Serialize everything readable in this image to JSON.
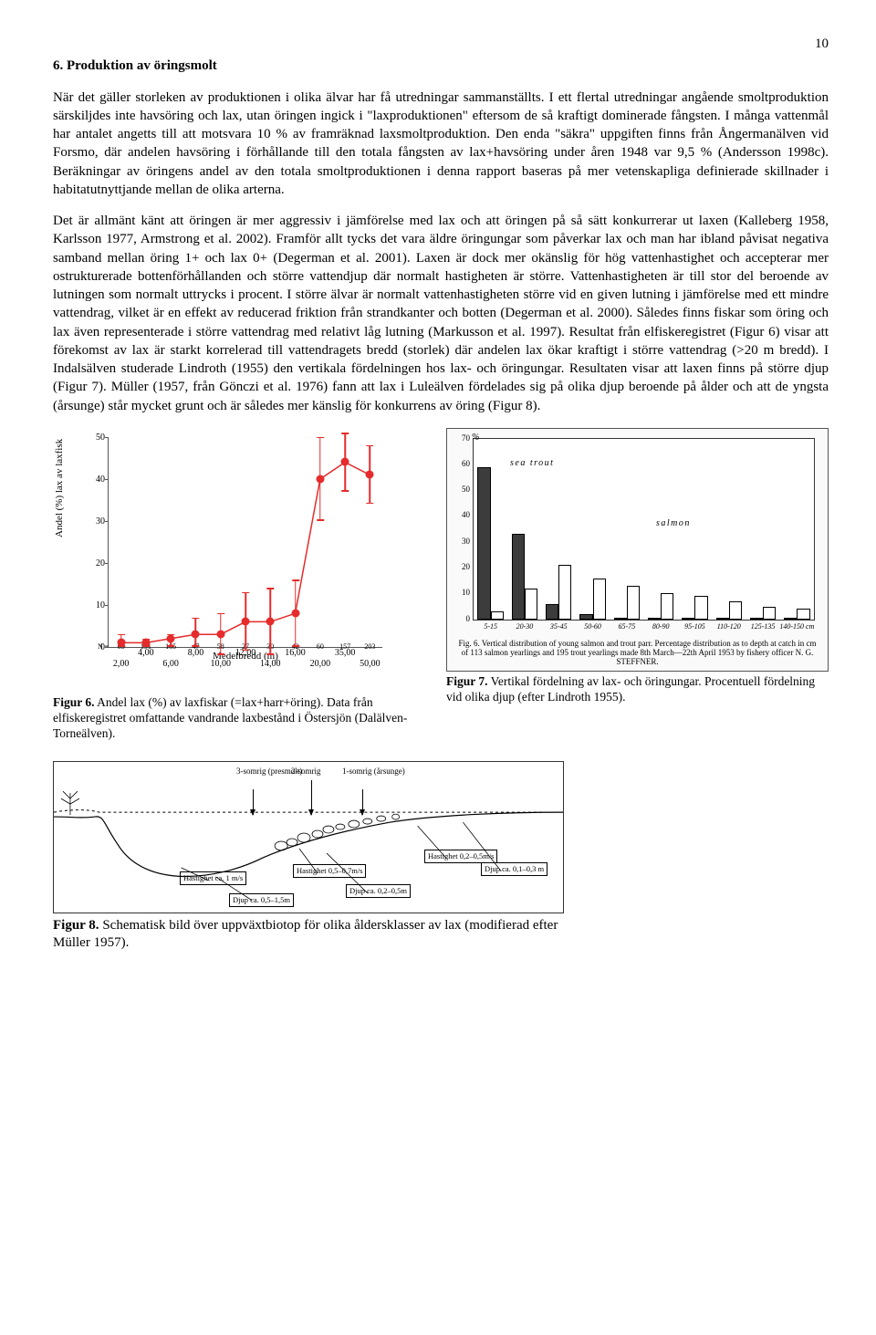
{
  "page_number": "10",
  "section_heading": "6. Produktion av öringsmolt",
  "para1": "När det gäller storleken av produktionen i olika älvar har få utredningar sammanställts. I ett flertal utredningar angående smoltproduktion särskiljdes inte havsöring och lax, utan öringen ingick i \"laxproduktionen\" eftersom de så kraftigt dominerade fångsten. I många vattenmål har antalet angetts till att motsvara 10 % av framräknad laxsmoltproduktion. Den enda \"säkra\" uppgiften finns från Ångermanälven vid Forsmo, där andelen havsöring i förhållande till den totala fångsten av lax+havsöring under åren 1948 var 9,5 % (Andersson 1998c). Beräkningar av öringens andel av den totala smoltproduktionen i denna rapport baseras på mer vetenskapliga definierade skillnader i habitatutnyttjande mellan de olika arterna.",
  "para2": "Det är allmänt känt att öringen är mer aggressiv i jämförelse med lax och att öringen på så sätt konkurrerar ut laxen (Kalleberg 1958, Karlsson 1977, Armstrong et al. 2002). Framför allt tycks det vara äldre öringungar som påverkar lax och man har ibland påvisat negativa samband mellan öring 1+ och lax 0+ (Degerman et al. 2001). Laxen är dock mer okänslig för hög vattenhastighet och accepterar mer ostrukturerade bottenförhållanden och större vattendjup där normalt hastigheten är större. Vattenhastigheten är till stor del beroende av lutningen som normalt uttrycks i procent. I större älvar är normalt vattenhastigheten större vid en given lutning i jämförelse med ett mindre vattendrag, vilket är en effekt av reducerad friktion från strandkanter och botten (Degerman et al. 2000). Således finns fiskar som öring och lax även representerade i större vattendrag med relativt låg lutning (Markusson et al. 1997). Resultat från elfiskeregistret (Figur 6) visar att förekomst av lax är starkt korrelerad till vattendragets bredd (storlek) där andelen lax ökar kraftigt i större vattendrag (>20 m bredd). I Indalsälven studerade Lindroth (1955) den vertikala fördelningen hos lax- och öringungar. Resultaten visar att laxen finns på större djup (Figur 7). Müller (1957, från Gönczi et al. 1976) fann att lax i Luleälven fördelades sig på olika djup beroende på ålder och att de yngsta (årsunge) står mycket grunt och är således mer känslig för konkurrens av öring (Figur 8).",
  "fig6_caption_bold": "Figur 6.",
  "fig6_caption": " Andel lax (%) av laxfiskar (=lax+harr+öring). Data från elfiskeregistret omfattande vandrande laxbestånd i Östersjön (Dalälven-Torneälven).",
  "fig7_caption_bold": "Figur 7.",
  "fig7_caption": " Vertikal fördelning av lax- och öringungar. Procentuell fördelning vid olika djup (efter Lindroth 1955).",
  "fig8_caption_bold": "Figur 8.",
  "fig8_caption": " Schematisk bild över uppväxtbiotop för olika åldersklasser av lax (modifierad efter Müller 1957).",
  "chart6": {
    "ylabel": "Andel (%) lax av laxfisk",
    "xlabel": "Medelbredd (m)",
    "ymin": 0,
    "ymax": 50,
    "ystep": 10,
    "xmajor": [
      "2,00",
      "6,00",
      "10,00",
      "14,00",
      "20,00",
      "50,00"
    ],
    "xminor": [
      "4,00",
      "8,00",
      "12,00",
      "16,00",
      "35,00"
    ],
    "n": [
      "63",
      "191",
      "105",
      "47",
      "58",
      "27",
      "30",
      "42",
      "60",
      "157",
      "203"
    ],
    "points": [
      {
        "y": 1,
        "lo": 0,
        "hi": 3
      },
      {
        "y": 1,
        "lo": 0,
        "hi": 2
      },
      {
        "y": 2,
        "lo": 0,
        "hi": 3
      },
      {
        "y": 3,
        "lo": 0,
        "hi": 7
      },
      {
        "y": 3,
        "lo": -2,
        "hi": 8
      },
      {
        "y": 6,
        "lo": -1,
        "hi": 13
      },
      {
        "y": 6,
        "lo": -2,
        "hi": 14
      },
      {
        "y": 8,
        "lo": 0,
        "hi": 16
      },
      {
        "y": 40,
        "lo": 30,
        "hi": 50
      },
      {
        "y": 44,
        "lo": 37,
        "hi": 51
      },
      {
        "y": 41,
        "lo": 34,
        "hi": 48
      }
    ],
    "color": "#e52b2b"
  },
  "fig7": {
    "ylabel_symbol": "%",
    "ymax": 70,
    "ystep": 10,
    "sea_trout_label": "sea trout",
    "salmon_label": "salmon",
    "xcats": [
      "5-15",
      "20-30",
      "35-45",
      "50-60",
      "65-75",
      "80-90",
      "95-105",
      "110-120",
      "125-135",
      "140-150 cm"
    ],
    "sea_trout": [
      59,
      33,
      6,
      2,
      0,
      0,
      0,
      0,
      0,
      0
    ],
    "salmon": [
      3,
      12,
      21,
      16,
      13,
      10,
      9,
      7,
      5,
      4
    ],
    "sea_trout_color": "#3c3c3c",
    "salmon_color": "#ffffff",
    "caption": "Fig. 6. Vertical distribution of young salmon and trout parr. Percentage distribution as to depth at catch in cm of 113 salmon yearlings and 195 trout yearlings made 8th March—22th April 1953 by fishery officer N. G. STEFFNER."
  },
  "fig8": {
    "age_labels": [
      "3-somrig\n(presmolt)",
      "2-somrig",
      "1-somrig\n(årsunge)"
    ],
    "hastighet_1": "Hastighet\nca. 1 m/s",
    "djup_1": "Djup ca.\n0,5–1,5m",
    "hastighet_2": "Hastighet\n0,5–0,7m/s",
    "djup_2": "Djup ca.\n0,2–0,5m",
    "hastighet_3": "Hastighet\n0,2–0,5m/s",
    "djup_3": "Djup ca.\n0,1–0,3 m"
  }
}
